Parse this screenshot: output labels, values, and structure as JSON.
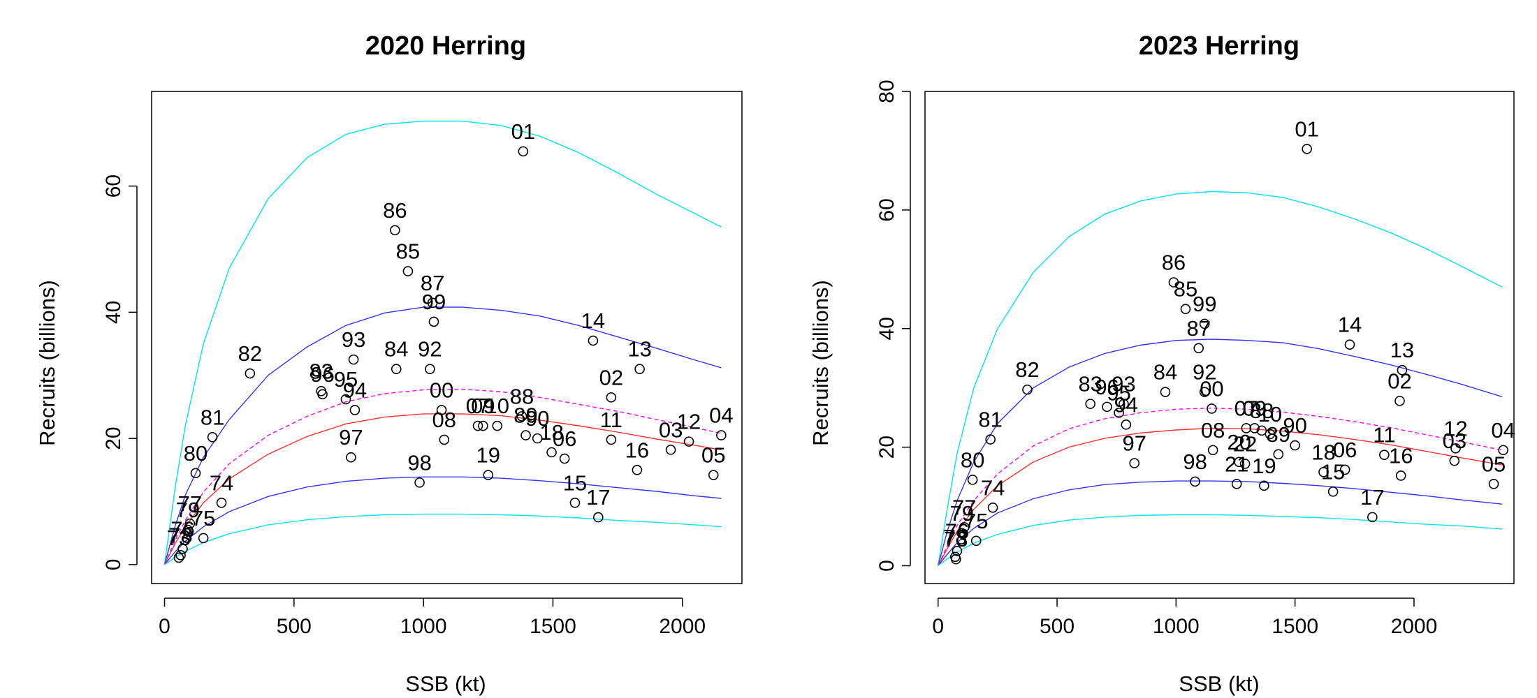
{
  "chart_data": [
    {
      "type": "scatter",
      "title": "2020 Herring",
      "xlabel": "SSB (kt)",
      "ylabel": "Recruits (billions)",
      "xlim": [
        -50,
        2230
      ],
      "ylim": [
        -3,
        75
      ],
      "xticks": [
        0,
        500,
        1000,
        1500,
        2000
      ],
      "yticks": [
        0,
        20,
        40,
        60
      ],
      "colors": {
        "outer": "#00e5ee",
        "inner": "#3333ff",
        "median": "#ff3030",
        "mean": "#ff00ff"
      },
      "curves": [
        {
          "role": "outer",
          "x": [
            0,
            40,
            80,
            150,
            250,
            400,
            550,
            700,
            850,
            1000,
            1150,
            1300,
            1450,
            1600,
            1750,
            1900,
            2050,
            2150
          ],
          "y": [
            0,
            12,
            22,
            35,
            47,
            58,
            64.5,
            68.2,
            69.8,
            70.3,
            70.3,
            69.6,
            67.9,
            65.3,
            62.1,
            58.7,
            55.6,
            53.5
          ]
        },
        {
          "role": "inner",
          "x": [
            0,
            40,
            80,
            150,
            250,
            400,
            550,
            700,
            850,
            1000,
            1150,
            1300,
            1450,
            1600,
            1750,
            1900,
            2050,
            2150
          ],
          "y": [
            0,
            6,
            11,
            17,
            23,
            30,
            34.5,
            37.9,
            39.9,
            40.8,
            40.8,
            40.3,
            39.4,
            37.9,
            36.1,
            34.3,
            32.4,
            31.2
          ]
        },
        {
          "role": "mean",
          "x": [
            0,
            40,
            80,
            150,
            250,
            400,
            550,
            700,
            850,
            1000,
            1150,
            1300,
            1450,
            1600,
            1750,
            1900,
            2050,
            2150
          ],
          "y": [
            0,
            3.8,
            7,
            11.5,
            16,
            20.5,
            23.5,
            25.8,
            27.1,
            27.7,
            27.8,
            27.4,
            26.5,
            25.4,
            24.3,
            23,
            21.7,
            20.8
          ]
        },
        {
          "role": "median",
          "x": [
            0,
            40,
            80,
            150,
            250,
            400,
            550,
            700,
            850,
            1000,
            1150,
            1300,
            1450,
            1600,
            1750,
            1900,
            2050,
            2150
          ],
          "y": [
            0,
            3.3,
            6,
            9.8,
            13.6,
            17.5,
            20.3,
            22.3,
            23.4,
            23.9,
            23.9,
            23.6,
            22.9,
            22,
            21,
            19.9,
            18.9,
            18.2
          ]
        },
        {
          "role": "inner",
          "x": [
            0,
            40,
            80,
            150,
            250,
            400,
            550,
            700,
            850,
            1000,
            1150,
            1300,
            1450,
            1600,
            1750,
            1900,
            2050,
            2150
          ],
          "y": [
            0,
            2,
            3.7,
            6,
            8.4,
            10.8,
            12.3,
            13.2,
            13.7,
            13.9,
            13.9,
            13.7,
            13.3,
            12.8,
            12.2,
            11.6,
            10.9,
            10.5
          ]
        },
        {
          "role": "outer",
          "x": [
            0,
            40,
            80,
            150,
            250,
            400,
            550,
            700,
            850,
            1000,
            1150,
            1300,
            1450,
            1600,
            1750,
            1900,
            2050,
            2150
          ],
          "y": [
            0,
            1.1,
            2.1,
            3.5,
            4.9,
            6.3,
            7.1,
            7.6,
            7.9,
            8,
            8,
            7.9,
            7.7,
            7.4,
            7,
            6.7,
            6.3,
            6
          ]
        }
      ],
      "points": [
        {
          "label": "01",
          "x": 1385,
          "y": 65.5
        },
        {
          "label": "86",
          "x": 890,
          "y": 53
        },
        {
          "label": "85",
          "x": 940,
          "y": 46.5
        },
        {
          "label": "87",
          "x": 1035,
          "y": 41.5
        },
        {
          "label": "99",
          "x": 1040,
          "y": 38.5
        },
        {
          "label": "14",
          "x": 1655,
          "y": 35.5
        },
        {
          "label": "93",
          "x": 730,
          "y": 32.5
        },
        {
          "label": "84",
          "x": 895,
          "y": 31
        },
        {
          "label": "92",
          "x": 1025,
          "y": 31
        },
        {
          "label": "13",
          "x": 1835,
          "y": 31
        },
        {
          "label": "82",
          "x": 330,
          "y": 30.3
        },
        {
          "label": "83",
          "x": 605,
          "y": 27.5
        },
        {
          "label": "96",
          "x": 610,
          "y": 27
        },
        {
          "label": "95",
          "x": 700,
          "y": 26.2
        },
        {
          "label": "02",
          "x": 1725,
          "y": 26.5
        },
        {
          "label": "94",
          "x": 735,
          "y": 24.5
        },
        {
          "label": "00",
          "x": 1070,
          "y": 24.5
        },
        {
          "label": "88",
          "x": 1380,
          "y": 23.5
        },
        {
          "label": "09",
          "x": 1230,
          "y": 22
        },
        {
          "label": "07",
          "x": 1210,
          "y": 22
        },
        {
          "label": "10",
          "x": 1285,
          "y": 22
        },
        {
          "label": "89",
          "x": 1395,
          "y": 20.5
        },
        {
          "label": "90",
          "x": 1440,
          "y": 20
        },
        {
          "label": "08",
          "x": 1080,
          "y": 19.8
        },
        {
          "label": "81",
          "x": 185,
          "y": 20.2
        },
        {
          "label": "11",
          "x": 1725,
          "y": 19.8
        },
        {
          "label": "04",
          "x": 2150,
          "y": 20.5
        },
        {
          "label": "12",
          "x": 2025,
          "y": 19.5
        },
        {
          "label": "03",
          "x": 1955,
          "y": 18.2
        },
        {
          "label": "18",
          "x": 1495,
          "y": 17.8
        },
        {
          "label": "06",
          "x": 1545,
          "y": 16.8
        },
        {
          "label": "97",
          "x": 720,
          "y": 17
        },
        {
          "label": "16",
          "x": 1825,
          "y": 15
        },
        {
          "label": "80",
          "x": 120,
          "y": 14.5
        },
        {
          "label": "19",
          "x": 1250,
          "y": 14.2
        },
        {
          "label": "05",
          "x": 2120,
          "y": 14.2
        },
        {
          "label": "98",
          "x": 985,
          "y": 13
        },
        {
          "label": "74",
          "x": 220,
          "y": 9.8
        },
        {
          "label": "15",
          "x": 1585,
          "y": 9.8
        },
        {
          "label": "17",
          "x": 1675,
          "y": 7.5
        },
        {
          "label": "77",
          "x": 98,
          "y": 6.5
        },
        {
          "label": "75",
          "x": 150,
          "y": 4.2
        },
        {
          "label": "79",
          "x": 90,
          "y": 5.5
        },
        {
          "label": "76",
          "x": 70,
          "y": 2.5
        },
        {
          "label": "78",
          "x": 62,
          "y": 1.5
        },
        {
          "label": "73",
          "x": 55,
          "y": 1.1
        }
      ]
    },
    {
      "type": "scatter",
      "title": "2023 Herring",
      "xlabel": "SSB (kt)",
      "ylabel": "Recruits (billions)",
      "xlim": [
        -55,
        2420
      ],
      "ylim": [
        -3,
        80
      ],
      "xticks": [
        0,
        500,
        1000,
        1500,
        2000
      ],
      "yticks": [
        0,
        20,
        40,
        60,
        80
      ],
      "colors": {
        "outer": "#00e5ee",
        "inner": "#3333ff",
        "median": "#ff3030",
        "mean": "#ff00ff"
      },
      "curves": [
        {
          "role": "outer",
          "x": [
            0,
            40,
            80,
            150,
            250,
            400,
            550,
            700,
            850,
            1000,
            1150,
            1300,
            1450,
            1600,
            1750,
            1900,
            2050,
            2200,
            2370
          ],
          "y": [
            0,
            10,
            19,
            30,
            40,
            49.5,
            55.5,
            59.3,
            61.5,
            62.7,
            63.1,
            62.9,
            62.1,
            60.5,
            58.5,
            56.2,
            53.5,
            50.5,
            47
          ]
        },
        {
          "role": "inner",
          "x": [
            0,
            40,
            80,
            150,
            250,
            400,
            550,
            700,
            850,
            1000,
            1150,
            1300,
            1450,
            1600,
            1750,
            1900,
            2050,
            2200,
            2370
          ],
          "y": [
            0,
            6,
            11,
            17.5,
            24,
            30,
            33.5,
            35.8,
            37.2,
            38,
            38.2,
            38,
            37.6,
            36.6,
            35.3,
            33.9,
            32.3,
            30.6,
            28.5
          ]
        },
        {
          "role": "mean",
          "x": [
            0,
            40,
            80,
            150,
            250,
            400,
            550,
            700,
            850,
            1000,
            1150,
            1300,
            1450,
            1600,
            1750,
            1900,
            2050,
            2200,
            2370
          ],
          "y": [
            0,
            3.5,
            6.8,
            11,
            15.5,
            20.2,
            23.1,
            24.8,
            25.8,
            26.4,
            26.6,
            26.4,
            25.9,
            25.2,
            24.3,
            23.3,
            22.1,
            20.9,
            19.5
          ]
        },
        {
          "role": "median",
          "x": [
            0,
            40,
            80,
            150,
            250,
            400,
            550,
            700,
            850,
            1000,
            1150,
            1300,
            1450,
            1600,
            1750,
            1900,
            2050,
            2200,
            2370
          ],
          "y": [
            0,
            3,
            5.8,
            9.5,
            13.5,
            17.5,
            20,
            21.5,
            22.4,
            22.9,
            23.2,
            23.1,
            22.7,
            22.1,
            21.3,
            20.4,
            19.3,
            18.2,
            17
          ]
        },
        {
          "role": "inner",
          "x": [
            0,
            40,
            80,
            150,
            250,
            400,
            550,
            700,
            850,
            1000,
            1150,
            1300,
            1450,
            1600,
            1750,
            1900,
            2050,
            2200,
            2370
          ],
          "y": [
            0,
            2,
            3.9,
            6.3,
            8.9,
            11.3,
            12.8,
            13.7,
            14.1,
            14.3,
            14.3,
            14.2,
            13.9,
            13.5,
            13,
            12.4,
            11.8,
            11.1,
            10.4
          ]
        },
        {
          "role": "outer",
          "x": [
            0,
            40,
            80,
            150,
            250,
            400,
            550,
            700,
            850,
            1000,
            1150,
            1300,
            1450,
            1600,
            1750,
            1900,
            2050,
            2200,
            2370
          ],
          "y": [
            0,
            1.2,
            2.3,
            3.8,
            5.3,
            6.8,
            7.7,
            8.2,
            8.5,
            8.6,
            8.6,
            8.5,
            8.3,
            8.1,
            7.8,
            7.4,
            7,
            6.7,
            6.2
          ]
        }
      ],
      "points": [
        {
          "label": "01",
          "x": 1550,
          "y": 70.3
        },
        {
          "label": "86",
          "x": 990,
          "y": 47.8
        },
        {
          "label": "85",
          "x": 1040,
          "y": 43.3
        },
        {
          "label": "87",
          "x": 1095,
          "y": 36.7
        },
        {
          "label": "99",
          "x": 1120,
          "y": 40.8
        },
        {
          "label": "14",
          "x": 1730,
          "y": 37.3
        },
        {
          "label": "13",
          "x": 1950,
          "y": 33
        },
        {
          "label": "82",
          "x": 375,
          "y": 29.7
        },
        {
          "label": "84",
          "x": 955,
          "y": 29.3
        },
        {
          "label": "93",
          "x": 780,
          "y": 27.3
        },
        {
          "label": "83",
          "x": 640,
          "y": 27.3
        },
        {
          "label": "96",
          "x": 710,
          "y": 26.8
        },
        {
          "label": "95",
          "x": 760,
          "y": 25.8
        },
        {
          "label": "92",
          "x": 1120,
          "y": 29.3
        },
        {
          "label": "00",
          "x": 1150,
          "y": 26.5
        },
        {
          "label": "02",
          "x": 1940,
          "y": 27.8
        },
        {
          "label": "94",
          "x": 790,
          "y": 23.8
        },
        {
          "label": "09",
          "x": 1330,
          "y": 23.2
        },
        {
          "label": "07",
          "x": 1295,
          "y": 23.2
        },
        {
          "label": "88",
          "x": 1360,
          "y": 22.8
        },
        {
          "label": "10",
          "x": 1395,
          "y": 22.2
        },
        {
          "label": "89",
          "x": 1430,
          "y": 18.8
        },
        {
          "label": "90",
          "x": 1500,
          "y": 20.3
        },
        {
          "label": "08",
          "x": 1155,
          "y": 19.5
        },
        {
          "label": "81",
          "x": 220,
          "y": 21.3
        },
        {
          "label": "11",
          "x": 1875,
          "y": 18.7
        },
        {
          "label": "04",
          "x": 2375,
          "y": 19.5
        },
        {
          "label": "12",
          "x": 2175,
          "y": 19.8
        },
        {
          "label": "03",
          "x": 2170,
          "y": 17.7
        },
        {
          "label": "18",
          "x": 1620,
          "y": 15.8
        },
        {
          "label": "06",
          "x": 1710,
          "y": 16.2
        },
        {
          "label": "97",
          "x": 825,
          "y": 17.3
        },
        {
          "label": "16",
          "x": 1945,
          "y": 15.2
        },
        {
          "label": "80",
          "x": 145,
          "y": 14.5
        },
        {
          "label": "20",
          "x": 1265,
          "y": 17.5
        },
        {
          "label": "22",
          "x": 1290,
          "y": 17.2
        },
        {
          "label": "21",
          "x": 1255,
          "y": 13.8
        },
        {
          "label": "19",
          "x": 1370,
          "y": 13.5
        },
        {
          "label": "05",
          "x": 2335,
          "y": 13.8
        },
        {
          "label": "98",
          "x": 1080,
          "y": 14.2
        },
        {
          "label": "15",
          "x": 1660,
          "y": 12.5
        },
        {
          "label": "74",
          "x": 230,
          "y": 9.8
        },
        {
          "label": "17",
          "x": 1825,
          "y": 8.2
        },
        {
          "label": "77",
          "x": 110,
          "y": 6.5
        },
        {
          "label": "75",
          "x": 160,
          "y": 4.2
        },
        {
          "label": "79",
          "x": 100,
          "y": 5.5
        },
        {
          "label": "76",
          "x": 80,
          "y": 2.5
        },
        {
          "label": "78",
          "x": 72,
          "y": 1.5
        },
        {
          "label": "73",
          "x": 75,
          "y": 1.1
        }
      ]
    }
  ]
}
